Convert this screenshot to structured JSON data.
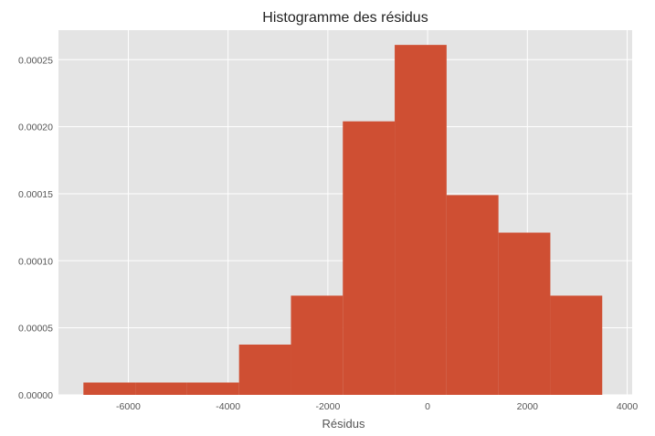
{
  "chart_data": {
    "type": "bar",
    "title": "Histogramme des résidus",
    "xlabel": "Résidus",
    "ylabel": "",
    "xlim": [
      -7400,
      4100
    ],
    "ylim": [
      0,
      0.000272
    ],
    "grid": true,
    "x_ticks": [
      {
        "value": -6000,
        "label": "-6000"
      },
      {
        "value": -4000,
        "label": "-4000"
      },
      {
        "value": -2000,
        "label": "-2000"
      },
      {
        "value": 0,
        "label": "0"
      },
      {
        "value": 2000,
        "label": "2000"
      },
      {
        "value": 4000,
        "label": "4000"
      }
    ],
    "y_ticks": [
      {
        "value": 0.0,
        "label": "0.00000"
      },
      {
        "value": 5e-05,
        "label": "0.00005"
      },
      {
        "value": 0.0001,
        "label": "0.00010"
      },
      {
        "value": 0.00015,
        "label": "0.00015"
      },
      {
        "value": 0.0002,
        "label": "0.00020"
      },
      {
        "value": 0.00025,
        "label": "0.00025"
      }
    ],
    "bins": [
      {
        "x0": -6900,
        "x1": -5860,
        "density": 9.2e-06
      },
      {
        "x0": -5860,
        "x1": -4820,
        "density": 9.2e-06
      },
      {
        "x0": -4820,
        "x1": -3780,
        "density": 9.2e-06
      },
      {
        "x0": -3780,
        "x1": -2740,
        "density": 3.75e-05
      },
      {
        "x0": -2740,
        "x1": -1700,
        "density": 7.4e-05
      },
      {
        "x0": -1700,
        "x1": -660,
        "density": 0.000204
      },
      {
        "x0": -660,
        "x1": 380,
        "density": 0.000261
      },
      {
        "x0": 380,
        "x1": 1420,
        "density": 0.000149
      },
      {
        "x0": 1420,
        "x1": 2460,
        "density": 0.000121
      },
      {
        "x0": 2460,
        "x1": 3500,
        "density": 7.4e-05
      }
    ],
    "colors": {
      "bar": "#CF4F33",
      "plot_background": "#E4E4E4",
      "grid": "#FFFFFF"
    }
  }
}
